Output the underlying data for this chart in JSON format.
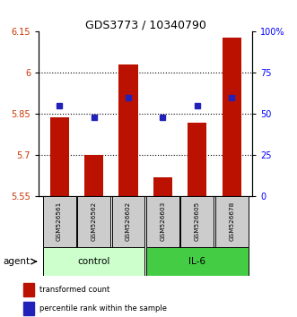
{
  "title": "GDS3773 / 10340790",
  "samples": [
    "GSM526561",
    "GSM526562",
    "GSM526602",
    "GSM526603",
    "GSM526605",
    "GSM526678"
  ],
  "groups": [
    "control",
    "control",
    "control",
    "IL-6",
    "IL-6",
    "IL-6"
  ],
  "red_values": [
    5.84,
    5.7,
    6.03,
    5.62,
    5.82,
    6.13
  ],
  "blue_percentiles": [
    55,
    48,
    60,
    48,
    55,
    60
  ],
  "ylim_left": [
    5.55,
    6.15
  ],
  "ylim_right": [
    0,
    100
  ],
  "yticks_left": [
    5.55,
    5.7,
    5.85,
    6.0,
    6.15
  ],
  "yticks_right": [
    0,
    25,
    50,
    75,
    100
  ],
  "ytick_labels_left": [
    "5.55",
    "5.7",
    "5.85",
    "6",
    "6.15"
  ],
  "ytick_labels_right": [
    "0",
    "25",
    "50",
    "75",
    "100%"
  ],
  "hlines": [
    5.7,
    5.85,
    6.0
  ],
  "bar_bottom": 5.55,
  "bar_color": "#bb1100",
  "dot_color": "#2222bb",
  "control_color": "#ccffcc",
  "il6_color": "#44cc44",
  "sample_bg_color": "#cccccc",
  "legend_red": "transformed count",
  "legend_blue": "percentile rank within the sample",
  "agent_label": "agent",
  "group_labels": [
    "control",
    "IL-6"
  ],
  "bar_width": 0.55
}
